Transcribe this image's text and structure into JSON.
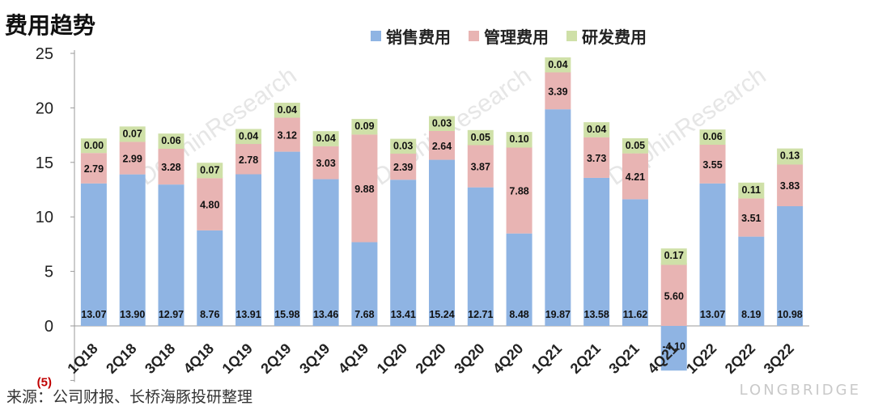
{
  "title": "费用趋势",
  "source": "来源：公司财报、长桥海豚投研整理",
  "watermark": {
    "brand": "LONGBRIDGE",
    "text": "DolphinResearch"
  },
  "colors": {
    "sales": "#8fb4e3",
    "admin": "#e8b4b3",
    "rd": "#cfe0a8",
    "axis": "#9a9a9a",
    "neg_label": "#c00000"
  },
  "chart_data": {
    "type": "bar",
    "stacked": true,
    "categories": [
      "1Q18",
      "2Q18",
      "3Q18",
      "4Q18",
      "1Q19",
      "2Q19",
      "3Q19",
      "4Q19",
      "1Q20",
      "2Q20",
      "3Q20",
      "4Q20",
      "1Q21",
      "2Q21",
      "3Q21",
      "4Q21",
      "1Q22",
      "2Q22",
      "3Q22"
    ],
    "series": [
      {
        "name": "销售费用",
        "color_key": "sales",
        "values": [
          13.07,
          13.9,
          12.97,
          8.76,
          13.91,
          15.98,
          13.46,
          7.68,
          13.41,
          15.24,
          12.71,
          8.48,
          19.87,
          13.58,
          11.62,
          -4.1,
          13.07,
          8.19,
          10.98
        ],
        "labels": [
          "13.07",
          "13.90",
          "12.97",
          "8.76",
          "13.91",
          "15.98",
          "13.46",
          "7.68",
          "13.41",
          "15.24",
          "12.71",
          "8.48",
          "19.87",
          "13.58",
          "11.62",
          "-4.10",
          "13.07",
          "8.19",
          "10.98"
        ]
      },
      {
        "name": "管理费用",
        "color_key": "admin",
        "values": [
          2.79,
          2.99,
          3.28,
          4.8,
          2.78,
          3.12,
          3.03,
          9.88,
          2.39,
          2.64,
          3.87,
          7.88,
          3.39,
          3.73,
          4.21,
          5.6,
          3.55,
          3.51,
          3.83
        ],
        "labels": [
          "2.79",
          "2.99",
          "3.28",
          "4.80",
          "2.78",
          "3.12",
          "3.03",
          "9.88",
          "2.39",
          "2.64",
          "3.87",
          "7.88",
          "3.39",
          "3.73",
          "4.21",
          "5.60",
          "3.55",
          "3.51",
          "3.83"
        ]
      },
      {
        "name": "研发费用",
        "color_key": "rd",
        "values": [
          0.0,
          0.07,
          0.06,
          0.07,
          0.04,
          0.04,
          0.04,
          0.09,
          0.03,
          0.03,
          0.05,
          0.1,
          0.04,
          0.04,
          0.05,
          0.17,
          0.06,
          0.11,
          0.13
        ],
        "labels": [
          "0.00",
          "0.07",
          "0.06",
          "0.07",
          "0.04",
          "0.04",
          "0.04",
          "0.09",
          "0.03",
          "0.03",
          "0.05",
          "0.10",
          "0.04",
          "0.04",
          "0.05",
          "0.17",
          "0.06",
          "0.11",
          "0.13"
        ]
      }
    ],
    "ylim": [
      -5,
      25
    ],
    "yticks": [
      -5,
      0,
      5,
      10,
      15,
      20,
      25
    ],
    "ytick_labels": [
      "(5)",
      "0",
      "5",
      "10",
      "15",
      "20",
      "25"
    ],
    "grid": false,
    "legend_position": "top"
  }
}
